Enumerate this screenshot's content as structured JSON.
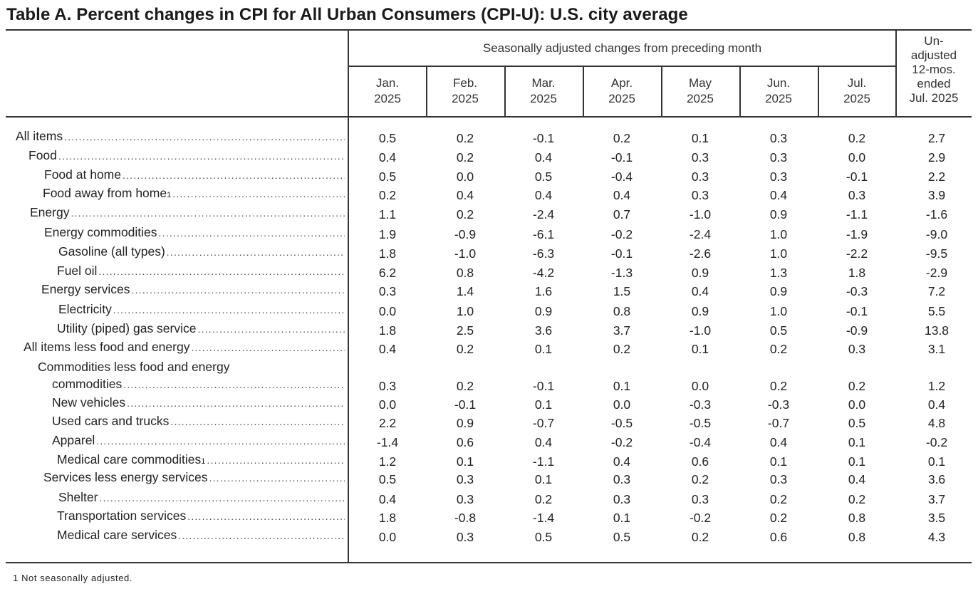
{
  "title": "Table A. Percent changes in CPI for All Urban Consumers (CPI-U): U.S. city average",
  "header": {
    "span_label": "Seasonally adjusted changes from preceding month",
    "columns": [
      {
        "line1": "Jan.",
        "line2": "2025"
      },
      {
        "line1": "Feb.",
        "line2": "2025"
      },
      {
        "line1": "Mar.",
        "line2": "2025"
      },
      {
        "line1": "Apr.",
        "line2": "2025"
      },
      {
        "line1": "May",
        "line2": "2025"
      },
      {
        "line1": "Jun.",
        "line2": "2025"
      },
      {
        "line1": "Jul.",
        "line2": "2025"
      }
    ],
    "last_column": [
      "Un-",
      "adjusted",
      "12-mos.",
      "ended",
      "Jul. 2025"
    ]
  },
  "rows": [
    {
      "label": "All items",
      "values": [
        "0.5",
        "0.2",
        "-0.1",
        "0.2",
        "0.1",
        "0.3",
        "0.2",
        "2.7"
      ]
    },
    {
      "label": "Food",
      "values": [
        "0.4",
        "0.2",
        "0.4",
        "-0.1",
        "0.3",
        "0.3",
        "0.0",
        "2.9"
      ]
    },
    {
      "label": "Food at home",
      "values": [
        "0.5",
        "0.0",
        "0.5",
        "-0.4",
        "0.3",
        "0.3",
        "-0.1",
        "2.2"
      ]
    },
    {
      "label": "Food away from home",
      "footnote": "1",
      "values": [
        "0.2",
        "0.4",
        "0.4",
        "0.4",
        "0.3",
        "0.4",
        "0.3",
        "3.9"
      ]
    },
    {
      "label": "Energy",
      "values": [
        "1.1",
        "0.2",
        "-2.4",
        "0.7",
        "-1.0",
        "0.9",
        "-1.1",
        "-1.6"
      ]
    },
    {
      "label": "Energy commodities",
      "values": [
        "1.9",
        "-0.9",
        "-6.1",
        "-0.2",
        "-2.4",
        "1.0",
        "-1.9",
        "-9.0"
      ]
    },
    {
      "label": "Gasoline (all types)",
      "values": [
        "1.8",
        "-1.0",
        "-6.3",
        "-0.1",
        "-2.6",
        "1.0",
        "-2.2",
        "-9.5"
      ]
    },
    {
      "label": "Fuel oil",
      "values": [
        "6.2",
        "0.8",
        "-4.2",
        "-1.3",
        "0.9",
        "1.3",
        "1.8",
        "-2.9"
      ]
    },
    {
      "label": "Energy services",
      "values": [
        "0.3",
        "1.4",
        "1.6",
        "1.5",
        "0.4",
        "0.9",
        "-0.3",
        "7.2"
      ]
    },
    {
      "label": "Electricity",
      "values": [
        "0.0",
        "1.0",
        "0.9",
        "0.8",
        "0.9",
        "1.0",
        "-0.1",
        "5.5"
      ]
    },
    {
      "label": "Utility (piped) gas service",
      "values": [
        "1.8",
        "2.5",
        "3.6",
        "3.7",
        "-1.0",
        "0.5",
        "-0.9",
        "13.8"
      ]
    },
    {
      "label": "All items less food and energy",
      "values": [
        "0.4",
        "0.2",
        "0.1",
        "0.2",
        "0.1",
        "0.2",
        "0.3",
        "3.1"
      ]
    },
    {
      "label_line1": "Commodities less food and energy",
      "label": "commodities",
      "values": [
        "0.3",
        "0.2",
        "-0.1",
        "0.1",
        "0.0",
        "0.2",
        "0.2",
        "1.2"
      ]
    },
    {
      "label": "New vehicles",
      "values": [
        "0.0",
        "-0.1",
        "0.1",
        "0.0",
        "-0.3",
        "-0.3",
        "0.0",
        "0.4"
      ]
    },
    {
      "label": "Used cars and trucks",
      "values": [
        "2.2",
        "0.9",
        "-0.7",
        "-0.5",
        "-0.5",
        "-0.7",
        "0.5",
        "4.8"
      ]
    },
    {
      "label": "Apparel",
      "values": [
        "-1.4",
        "0.6",
        "0.4",
        "-0.2",
        "-0.4",
        "0.4",
        "0.1",
        "-0.2"
      ]
    },
    {
      "label": "Medical care commodities",
      "footnote": "1",
      "values": [
        "1.2",
        "0.1",
        "-1.1",
        "0.4",
        "0.6",
        "0.1",
        "0.1",
        "0.1"
      ]
    },
    {
      "label": "Services less energy services",
      "values": [
        "0.5",
        "0.3",
        "0.1",
        "0.3",
        "0.2",
        "0.3",
        "0.4",
        "3.6"
      ]
    },
    {
      "label": "Shelter",
      "values": [
        "0.4",
        "0.3",
        "0.2",
        "0.3",
        "0.3",
        "0.2",
        "0.2",
        "3.7"
      ]
    },
    {
      "label": "Transportation services",
      "values": [
        "1.8",
        "-0.8",
        "-1.4",
        "0.1",
        "-0.2",
        "0.2",
        "0.8",
        "3.5"
      ]
    },
    {
      "label": "Medical care services",
      "values": [
        "0.0",
        "0.3",
        "0.5",
        "0.5",
        "0.2",
        "0.6",
        "0.8",
        "4.3"
      ]
    }
  ],
  "footnote": {
    "marker": "1",
    "text": "Not seasonally adjusted."
  }
}
